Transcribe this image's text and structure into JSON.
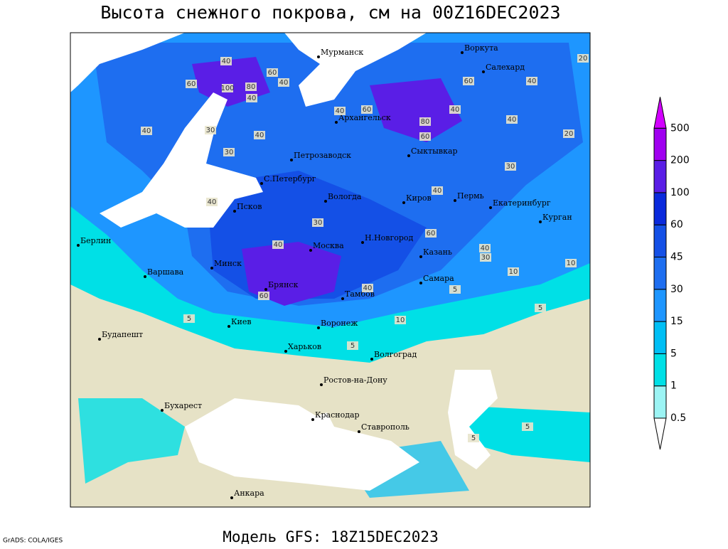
{
  "title": "Высота снежного покрова, см на 00Z16DEC2023",
  "model": "Модель GFS: 18Z15DEC2023",
  "credit": "GrADS: COLA/IGES",
  "legend": {
    "levels": [
      0.5,
      1,
      5,
      15,
      30,
      45,
      60,
      100,
      200,
      500
    ],
    "colors": [
      "#ffffff",
      "#9cf4f4",
      "#00e0e6",
      "#00bff5",
      "#1e96ff",
      "#1e6ef0",
      "#1450e6",
      "#0a2adc",
      "#5a1ee6",
      "#a000f0",
      "#d200ff"
    ]
  },
  "cities": [
    "Мурманск",
    "Воркута",
    "Салехард",
    "Архангельск",
    "Сыктывкар",
    "Петрозаводск",
    "С.Петербург",
    "Вологда",
    "Киров",
    "Пермь",
    "Екатеринбург",
    "Курган",
    "Псков",
    "Берлин",
    "Минск",
    "Москва",
    "Н.Новгород",
    "Казань",
    "Варшава",
    "Брянск",
    "Тамбов",
    "Самара",
    "Киев",
    "Воронеж",
    "Будапешт",
    "Харьков",
    "Волгоград",
    "Ростов-на-Дону",
    "Бухарест",
    "Краснодар",
    "Ставрополь",
    "Анкара"
  ],
  "contour_labels": [
    40,
    60,
    100,
    80,
    40,
    60,
    40,
    30,
    40,
    40,
    30,
    40,
    60,
    80,
    60,
    40,
    40,
    20,
    30,
    40,
    40,
    30,
    40,
    60,
    60,
    40,
    40,
    10,
    30,
    5,
    5,
    10,
    60,
    40,
    20,
    10,
    5,
    5,
    5,
    5
  ]
}
